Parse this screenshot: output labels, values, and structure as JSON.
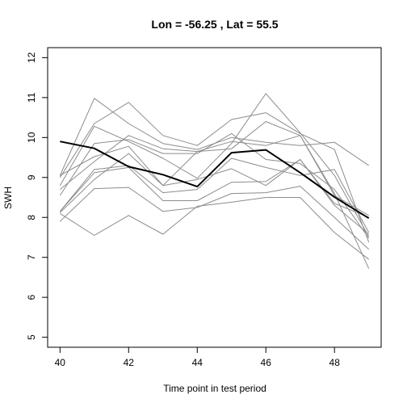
{
  "chart_data": {
    "type": "line",
    "title": "Lon =  -56.25 , Lat =  55.5",
    "xlabel": "Time point in test period",
    "ylabel": "SWH",
    "x": [
      40,
      41,
      42,
      43,
      44,
      45,
      46,
      47,
      48,
      49
    ],
    "xlim": [
      39.64,
      49.36
    ],
    "ylim": [
      4.75,
      12.25
    ],
    "xticks": [
      40,
      42,
      44,
      46,
      48
    ],
    "yticks": [
      5,
      6,
      7,
      8,
      9,
      10,
      11,
      12
    ],
    "grid": false,
    "legend": "none",
    "colors": {
      "ensemble": "#8c8c8c",
      "mean": "#000000"
    },
    "series": [
      {
        "role": "ensemble",
        "values": [
          9.05,
          10.98,
          10.35,
          9.85,
          9.7,
          10.0,
          9.88,
          9.8,
          9.88,
          9.3
        ]
      },
      {
        "role": "ensemble",
        "values": [
          9.0,
          10.35,
          10.88,
          10.05,
          9.8,
          10.45,
          10.62,
          10.1,
          9.7,
          7.38
        ]
      },
      {
        "role": "ensemble",
        "values": [
          8.8,
          10.28,
          9.9,
          9.48,
          8.98,
          9.85,
          11.1,
          10.12,
          9.05,
          7.52
        ]
      },
      {
        "role": "ensemble",
        "values": [
          8.55,
          9.85,
          9.95,
          9.6,
          9.6,
          10.1,
          9.45,
          9.35,
          8.7,
          7.48
        ]
      },
      {
        "role": "ensemble",
        "values": [
          8.7,
          9.4,
          10.05,
          9.72,
          9.65,
          9.72,
          10.4,
          10.05,
          8.6,
          6.72
        ]
      },
      {
        "role": "ensemble",
        "values": [
          8.15,
          9.2,
          9.3,
          8.62,
          8.7,
          9.48,
          9.25,
          9.05,
          9.2,
          7.62
        ]
      },
      {
        "role": "ensemble",
        "values": [
          8.12,
          8.95,
          9.6,
          8.8,
          8.95,
          9.22,
          8.8,
          9.45,
          8.3,
          7.58
        ]
      },
      {
        "role": "ensemble",
        "values": [
          8.15,
          9.12,
          9.25,
          8.42,
          8.42,
          8.88,
          8.9,
          9.45,
          8.35,
          8.0
        ]
      },
      {
        "role": "ensemble",
        "values": [
          7.9,
          8.72,
          8.75,
          8.15,
          8.25,
          8.6,
          8.62,
          8.78,
          8.0,
          7.2
        ]
      },
      {
        "role": "ensemble",
        "values": [
          8.1,
          7.55,
          8.05,
          7.58,
          8.28,
          8.38,
          8.5,
          8.5,
          7.62,
          6.95
        ]
      },
      {
        "role": "ensemble",
        "values": [
          9.05,
          9.52,
          9.78,
          8.8,
          9.65,
          9.9,
          9.8,
          10.05,
          8.55,
          8.05
        ]
      },
      {
        "role": "mean",
        "values": [
          9.9,
          9.73,
          9.27,
          9.07,
          8.77,
          9.62,
          9.69,
          9.12,
          8.51,
          7.98
        ]
      }
    ]
  }
}
